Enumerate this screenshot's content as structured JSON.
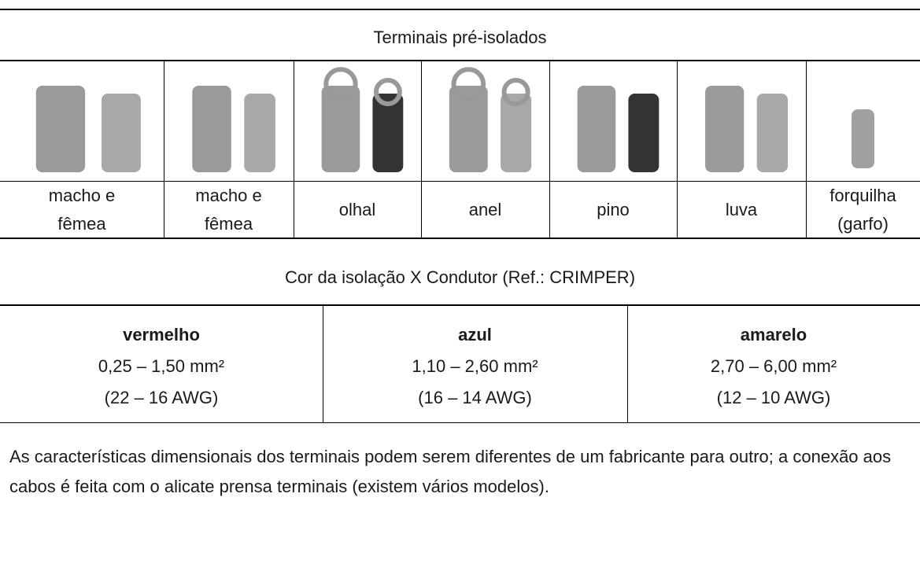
{
  "header": {
    "title": "Terminais pré-isolados"
  },
  "terminals": [
    {
      "label": [
        "macho e",
        "fêmea"
      ]
    },
    {
      "label": [
        "macho e",
        "fêmea"
      ]
    },
    {
      "label": [
        "olhal"
      ]
    },
    {
      "label": [
        "anel"
      ]
    },
    {
      "label": [
        "pino"
      ]
    },
    {
      "label": [
        "luva"
      ]
    },
    {
      "label": [
        "forquilha",
        "(garfo)"
      ]
    }
  ],
  "color_table": {
    "title": "Cor da isolação X Condutor (Ref.: CRIMPER)",
    "columns": [
      {
        "color": "vermelho",
        "section": "0,25 – 1,50 mm²",
        "awg": "(22 – 16 AWG)"
      },
      {
        "color": "azul",
        "section": "1,10 – 2,60 mm²",
        "awg": "(16 – 14 AWG)"
      },
      {
        "color": "amarelo",
        "section": "2,70 – 6,00 mm²",
        "awg": "(12 – 10 AWG)"
      }
    ]
  },
  "note": "As características dimensionais dos terminais podem serem diferentes de um fabricante para outro; a conexão aos cabos é feita com o alicate prensa terminais (existem vários modelos)."
}
